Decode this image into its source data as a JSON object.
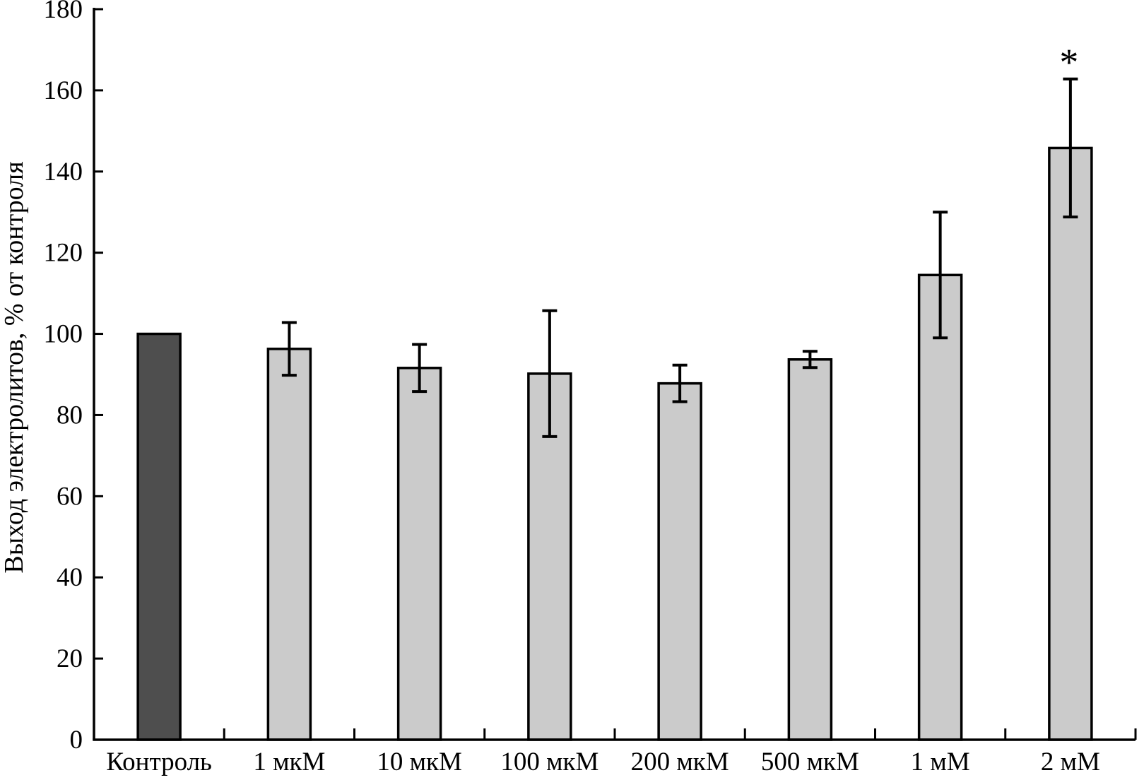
{
  "page": {
    "background": "#ffffff"
  },
  "chart_data": {
    "type": "bar",
    "title": "",
    "xlabel": "",
    "ylabel": "Выход электролитов, % от контроля",
    "ylim": [
      0,
      180
    ],
    "ytick_interval": 20,
    "ytick_labels": [
      "0",
      "20",
      "40",
      "60",
      "80",
      "100",
      "120",
      "140",
      "160",
      "180"
    ],
    "grid": false,
    "legend_position": "none",
    "categories": [
      "Контроль",
      "1 мкМ",
      "10 мкМ",
      "100 мкМ",
      "200 мкМ",
      "500 мкМ",
      "1 мМ",
      "2 мМ"
    ],
    "values": [
      100,
      96.3,
      91.6,
      90.2,
      87.8,
      93.7,
      114.5,
      145.8
    ],
    "errors": [
      0,
      6.5,
      5.8,
      15.5,
      4.5,
      2.0,
      15.5,
      17.0
    ],
    "bar_colors": [
      "#4e4e4e",
      "#cbcbcb",
      "#cbcbcb",
      "#cbcbcb",
      "#cbcbcb",
      "#cbcbcb",
      "#cbcbcb",
      "#cbcbcb"
    ],
    "annotations": [
      {
        "category_index": 7,
        "text": "*"
      }
    ],
    "colors": {
      "axis": "#000000",
      "text": "#000000",
      "error_bar": "#000000",
      "control_bar_fill": "#4e4e4e",
      "treatment_bar_fill": "#cbcbcb",
      "background": "#ffffff"
    }
  }
}
